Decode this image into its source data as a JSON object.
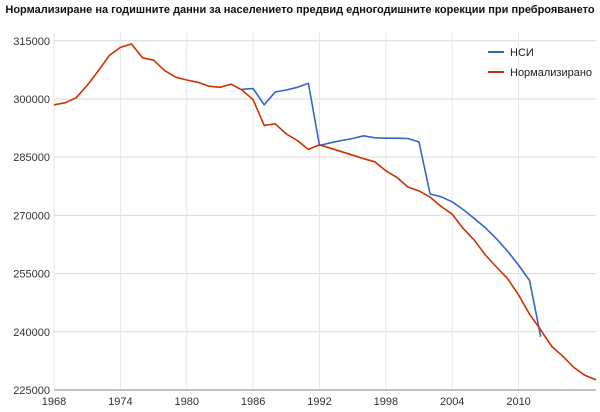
{
  "chart_data": {
    "type": "line",
    "title": "Нормализиране на годишните данни за населението предвид едногодишните корекции при преброяването",
    "xlabel": "",
    "ylabel": "",
    "xlim": [
      1968,
      2017
    ],
    "ylim": [
      225000,
      317000
    ],
    "x_ticks": [
      1968,
      1974,
      1980,
      1986,
      1992,
      1998,
      2004,
      2010
    ],
    "y_ticks": [
      225000,
      240000,
      255000,
      270000,
      285000,
      300000,
      315000
    ],
    "grid": true,
    "legend_position": "top-right",
    "series": [
      {
        "name": "НСИ",
        "color": "#3366cc",
        "points": [
          [
            1985,
            302500
          ],
          [
            1986,
            302700
          ],
          [
            1987,
            298500
          ],
          [
            1988,
            301800
          ],
          [
            1989,
            302300
          ],
          [
            1990,
            303000
          ],
          [
            1991,
            304000
          ],
          [
            1992,
            288000
          ],
          [
            1993,
            288700
          ],
          [
            1994,
            289300
          ],
          [
            1995,
            289800
          ],
          [
            1996,
            290500
          ],
          [
            1997,
            290000
          ],
          [
            1998,
            289900
          ],
          [
            1999,
            289900
          ],
          [
            2000,
            289800
          ],
          [
            2001,
            288900
          ],
          [
            2002,
            275500
          ],
          [
            2003,
            274800
          ],
          [
            2004,
            273500
          ],
          [
            2005,
            271500
          ],
          [
            2006,
            269200
          ],
          [
            2007,
            266800
          ],
          [
            2008,
            264000
          ],
          [
            2009,
            260800
          ],
          [
            2010,
            257200
          ],
          [
            2011,
            253200
          ],
          [
            2012,
            238700
          ]
        ]
      },
      {
        "name": "Нормализирано",
        "color": "#cc3300",
        "points": [
          [
            1968,
            298500
          ],
          [
            1969,
            299000
          ],
          [
            1970,
            300300
          ],
          [
            1971,
            303500
          ],
          [
            1972,
            307200
          ],
          [
            1973,
            311200
          ],
          [
            1974,
            313300
          ],
          [
            1975,
            314200
          ],
          [
            1976,
            310600
          ],
          [
            1977,
            310000
          ],
          [
            1978,
            307300
          ],
          [
            1979,
            305600
          ],
          [
            1980,
            304900
          ],
          [
            1981,
            304300
          ],
          [
            1982,
            303300
          ],
          [
            1983,
            303000
          ],
          [
            1984,
            303800
          ],
          [
            1985,
            302300
          ],
          [
            1986,
            299800
          ],
          [
            1987,
            293200
          ],
          [
            1988,
            293600
          ],
          [
            1989,
            291000
          ],
          [
            1990,
            289300
          ],
          [
            1991,
            287000
          ],
          [
            1992,
            288200
          ],
          [
            1993,
            287300
          ],
          [
            1994,
            286400
          ],
          [
            1995,
            285500
          ],
          [
            1996,
            284600
          ],
          [
            1997,
            283800
          ],
          [
            1998,
            281500
          ],
          [
            1999,
            279800
          ],
          [
            2000,
            277300
          ],
          [
            2001,
            276300
          ],
          [
            2002,
            274700
          ],
          [
            2003,
            272300
          ],
          [
            2004,
            270300
          ],
          [
            2005,
            266600
          ],
          [
            2006,
            263600
          ],
          [
            2007,
            259800
          ],
          [
            2008,
            256700
          ],
          [
            2009,
            253700
          ],
          [
            2010,
            249500
          ],
          [
            2011,
            244500
          ],
          [
            2012,
            240500
          ],
          [
            2013,
            236200
          ],
          [
            2014,
            233700
          ],
          [
            2015,
            230800
          ],
          [
            2016,
            228800
          ],
          [
            2017,
            227600
          ]
        ]
      }
    ]
  }
}
